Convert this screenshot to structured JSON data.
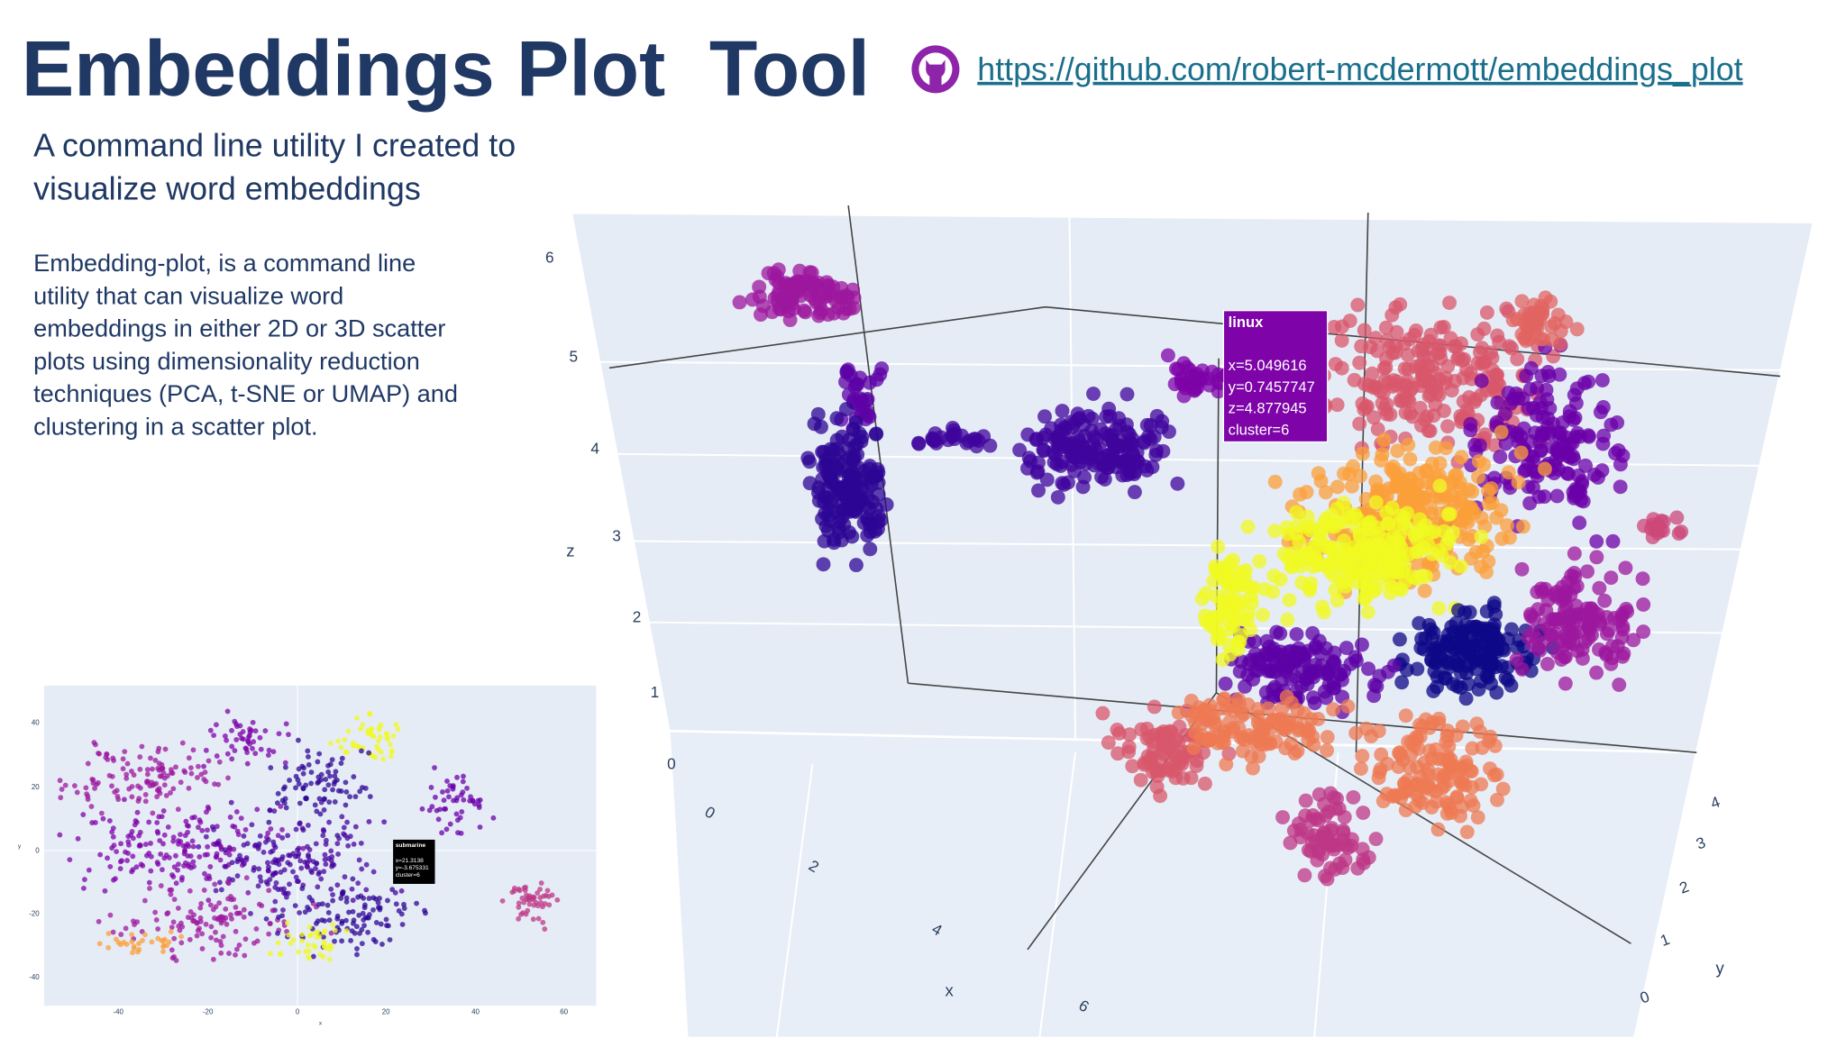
{
  "header": {
    "title": "Embeddings Plot  Tool",
    "link": "https://github.com/robert-mcdermott/embeddings_plot"
  },
  "intro": {
    "subtitle": [
      "A command line utility I created to",
      "visualize word embeddings"
    ],
    "body": [
      "Embedding-plot, is a command line",
      "utility that can visualize word",
      "embeddings in either 2D or 3D scatter",
      "plots using dimensionality reduction",
      "techniques (PCA, t-SNE or UMAP) and",
      "clustering in a scatter plot."
    ]
  },
  "plot3d": {
    "z_ticks": [
      "6",
      "5",
      "4",
      "3",
      "2",
      "1",
      "0"
    ],
    "x_ticks": [
      "0",
      "2",
      "4",
      "6"
    ],
    "y_ticks": [
      "4",
      "3",
      "2",
      "1",
      "0"
    ],
    "axis_labels": {
      "x": "x",
      "y": "y",
      "z": "z"
    },
    "tooltip": [
      "linux",
      "x=5.049616",
      "y=0.7457747",
      "z=4.877945",
      "cluster=6"
    ]
  },
  "plot2d": {
    "y_ticks": [
      "40",
      "20",
      "0",
      "-20",
      "-40"
    ],
    "x_ticks": [
      "-40",
      "-20",
      "0",
      "20",
      "40",
      "60"
    ],
    "axis_labels": {
      "x": "x",
      "y": "y"
    },
    "tooltip": [
      "submarine",
      "x=21.3138",
      "y=-3.675331",
      "cluster=6"
    ]
  }
}
